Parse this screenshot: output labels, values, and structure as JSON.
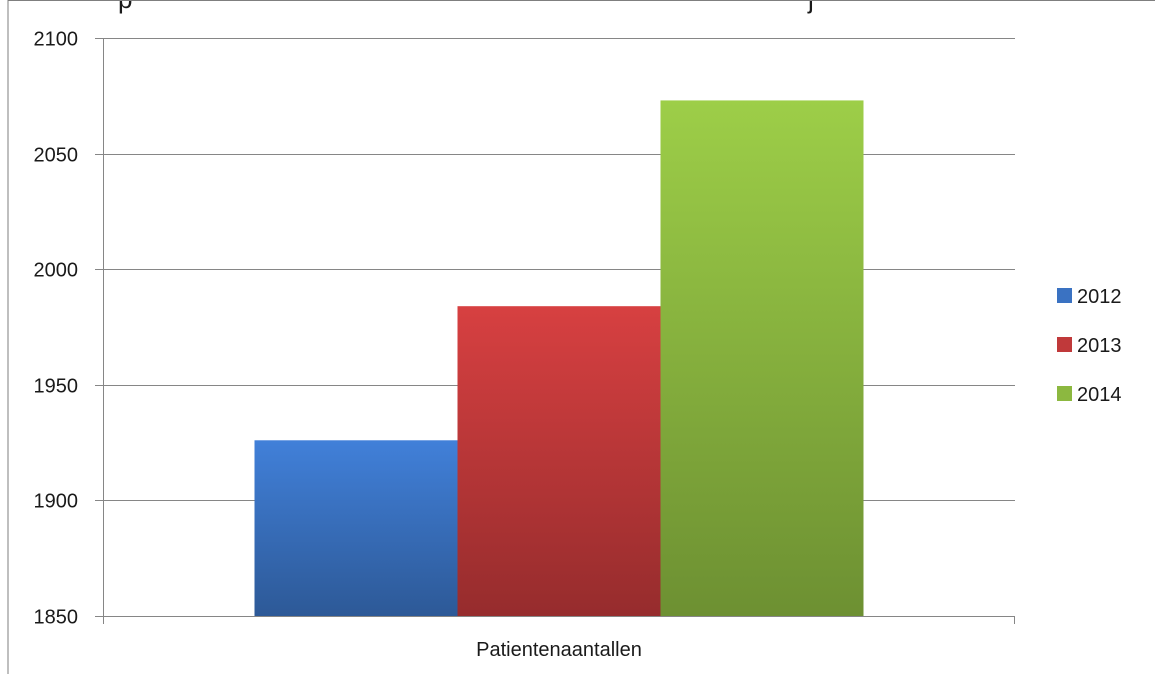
{
  "chart_data": {
    "type": "bar",
    "categories": [
      "Patientenaantallen"
    ],
    "series": [
      {
        "name": "2012",
        "values": [
          1926
        ],
        "color": "#3a72c2"
      },
      {
        "name": "2013",
        "values": [
          1984
        ],
        "color": "#c0393a"
      },
      {
        "name": "2014",
        "values": [
          2073
        ],
        "color": "#8cb840"
      }
    ],
    "ylim": [
      1850,
      2100
    ],
    "yticks": [
      "1850",
      "1900",
      "1950",
      "2000",
      "2050",
      "2100"
    ],
    "title_fragments": [
      "p",
      "j"
    ],
    "grid": true,
    "legend_position": "right"
  }
}
